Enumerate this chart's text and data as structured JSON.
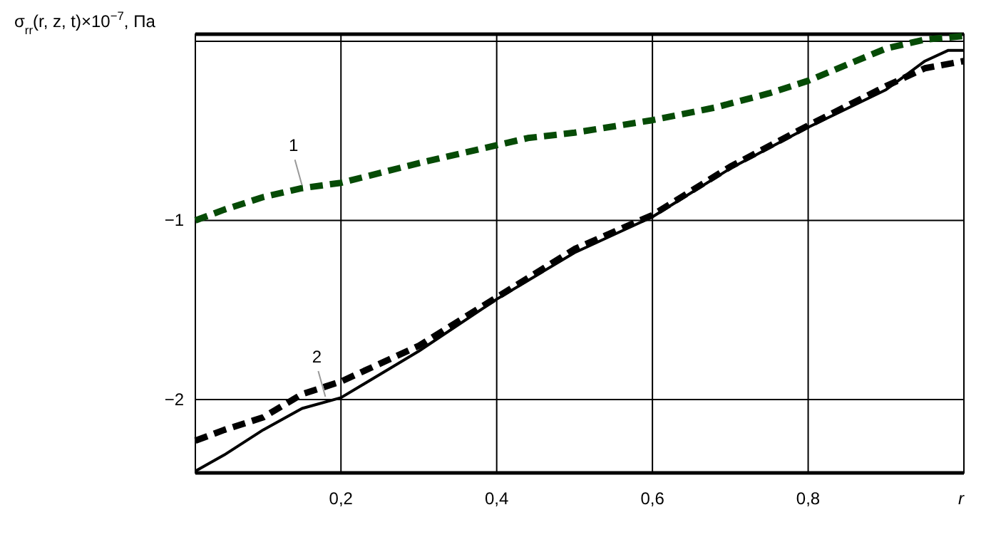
{
  "chart_data": {
    "type": "line",
    "ylabel": "σ$_{rr}$(r, z, t)×10$^{−7}$, Па",
    "xlabel": "r",
    "xlim": [
      0.013,
      1.0
    ],
    "ylim": [
      -2.41,
      0.04
    ],
    "xticks": [
      {
        "value": 0.2,
        "label": "0,2"
      },
      {
        "value": 0.4,
        "label": "0,4"
      },
      {
        "value": 0.6,
        "label": "0,6"
      },
      {
        "value": 0.8,
        "label": "0,8"
      }
    ],
    "yticks": [
      {
        "value": -2,
        "label": "−2"
      },
      {
        "value": -1,
        "label": "−1"
      },
      {
        "value": 0,
        "label": null
      }
    ],
    "grid": true,
    "series": [
      {
        "color": "#064b06",
        "line_style": "dashed",
        "x": [
          0.013,
          0.05,
          0.1,
          0.15,
          0.2,
          0.3,
          0.4,
          0.44,
          0.5,
          0.6,
          0.68,
          0.75,
          0.8,
          0.85,
          0.9,
          0.95,
          1.0
        ],
        "values": [
          -1.0,
          -0.94,
          -0.87,
          -0.82,
          -0.79,
          -0.68,
          -0.58,
          -0.54,
          -0.51,
          -0.44,
          -0.37,
          -0.29,
          -0.22,
          -0.13,
          -0.04,
          0.01,
          0.03
        ]
      },
      {
        "color": "#000000",
        "line_style": "solid",
        "x": [
          0.013,
          0.05,
          0.1,
          0.15,
          0.2,
          0.3,
          0.4,
          0.5,
          0.6,
          0.7,
          0.8,
          0.9,
          0.95,
          0.98,
          1.0
        ],
        "values": [
          -2.4,
          -2.31,
          -2.17,
          -2.05,
          -1.99,
          -1.73,
          -1.44,
          -1.18,
          -0.98,
          -0.71,
          -0.48,
          -0.27,
          -0.11,
          -0.05,
          -0.05
        ]
      },
      {
        "color": "#000000",
        "line_style": "dashed",
        "x": [
          0.013,
          0.05,
          0.1,
          0.15,
          0.2,
          0.3,
          0.4,
          0.5,
          0.6,
          0.7,
          0.8,
          0.9,
          0.95,
          1.0
        ],
        "values": [
          -2.23,
          -2.17,
          -2.1,
          -1.97,
          -1.9,
          -1.7,
          -1.43,
          -1.16,
          -0.97,
          -0.7,
          -0.47,
          -0.25,
          -0.15,
          -0.11
        ]
      }
    ],
    "annotations": [
      {
        "text": "1",
        "x": 0.15,
        "y": -0.82
      },
      {
        "text": "2",
        "x": 0.18,
        "y": -2.0
      }
    ]
  }
}
